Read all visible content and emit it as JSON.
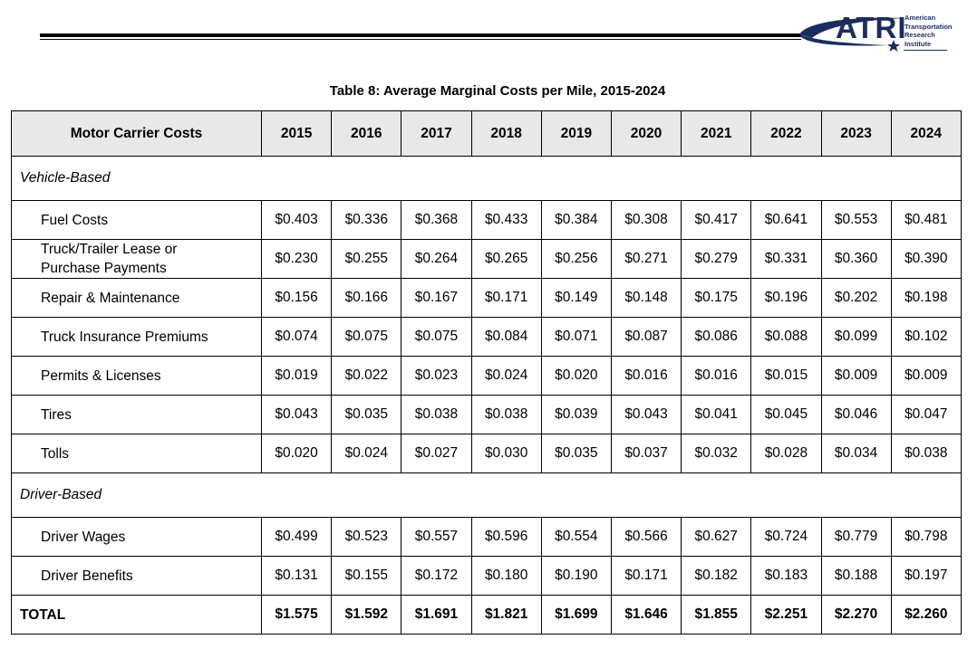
{
  "logo": {
    "word": "ATRI",
    "lines": [
      "American",
      "Transportation",
      "Research",
      "Institute"
    ]
  },
  "title": "Table 8: Average Marginal Costs per Mile, 2015-2024",
  "table": {
    "header_label": "Motor Carrier Costs",
    "years": [
      "2015",
      "2016",
      "2017",
      "2018",
      "2019",
      "2020",
      "2021",
      "2022",
      "2023",
      "2024"
    ],
    "sections": [
      {
        "name": "Vehicle-Based",
        "rows": [
          {
            "label": "Fuel Costs",
            "values": [
              "$0.403",
              "$0.336",
              "$0.368",
              "$0.433",
              "$0.384",
              "$0.308",
              "$0.417",
              "$0.641",
              "$0.553",
              "$0.481"
            ]
          },
          {
            "label_lines": [
              "Truck/Trailer Lease or",
              "Purchase Payments"
            ],
            "values": [
              "$0.230",
              "$0.255",
              "$0.264",
              "$0.265",
              "$0.256",
              "$0.271",
              "$0.279",
              "$0.331",
              "$0.360",
              "$0.390"
            ]
          },
          {
            "label": "Repair & Maintenance",
            "values": [
              "$0.156",
              "$0.166",
              "$0.167",
              "$0.171",
              "$0.149",
              "$0.148",
              "$0.175",
              "$0.196",
              "$0.202",
              "$0.198"
            ]
          },
          {
            "label": "Truck Insurance Premiums",
            "values": [
              "$0.074",
              "$0.075",
              "$0.075",
              "$0.084",
              "$0.071",
              "$0.087",
              "$0.086",
              "$0.088",
              "$0.099",
              "$0.102"
            ]
          },
          {
            "label": "Permits & Licenses",
            "values": [
              "$0.019",
              "$0.022",
              "$0.023",
              "$0.024",
              "$0.020",
              "$0.016",
              "$0.016",
              "$0.015",
              "$0.009",
              "$0.009"
            ]
          },
          {
            "label": "Tires",
            "values": [
              "$0.043",
              "$0.035",
              "$0.038",
              "$0.038",
              "$0.039",
              "$0.043",
              "$0.041",
              "$0.045",
              "$0.046",
              "$0.047"
            ]
          },
          {
            "label": "Tolls",
            "values": [
              "$0.020",
              "$0.024",
              "$0.027",
              "$0.030",
              "$0.035",
              "$0.037",
              "$0.032",
              "$0.028",
              "$0.034",
              "$0.038"
            ]
          }
        ]
      },
      {
        "name": "Driver-Based",
        "rows": [
          {
            "label": "Driver Wages",
            "values": [
              "$0.499",
              "$0.523",
              "$0.557",
              "$0.596",
              "$0.554",
              "$0.566",
              "$0.627",
              "$0.724",
              "$0.779",
              "$0.798"
            ]
          },
          {
            "label": "Driver Benefits",
            "values": [
              "$0.131",
              "$0.155",
              "$0.172",
              "$0.180",
              "$0.190",
              "$0.171",
              "$0.182",
              "$0.183",
              "$0.188",
              "$0.197"
            ]
          }
        ]
      }
    ],
    "total": {
      "label": "TOTAL",
      "values": [
        "$1.575",
        "$1.592",
        "$1.691",
        "$1.821",
        "$1.699",
        "$1.646",
        "$1.855",
        "$2.251",
        "$2.270",
        "$2.260"
      ]
    }
  }
}
